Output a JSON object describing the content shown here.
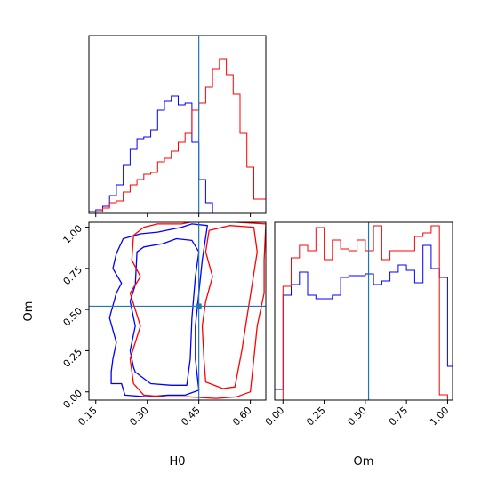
{
  "chart_data": {
    "type": "corner",
    "parameters": [
      "H0",
      "Om"
    ],
    "truth": {
      "H0": 0.45,
      "Om": 0.52
    },
    "truth_color": "#1f77b4",
    "series": [
      {
        "color": "#0000ff"
      },
      {
        "color": "#ff0000"
      }
    ],
    "axes": {
      "H0": {
        "xlabel": "H0",
        "lim": [
          0.13,
          0.645
        ],
        "ticks": [
          0.15,
          0.3,
          0.45,
          0.6
        ],
        "tick_labels": [
          "0.15",
          "0.30",
          "0.45",
          "0.60"
        ]
      },
      "Om": {
        "xlabel": "Om",
        "ylabel": "Om",
        "lim": [
          -0.05,
          1.03
        ],
        "ticks": [
          0.0,
          0.25,
          0.5,
          0.75,
          1.0
        ],
        "tick_labels": [
          "0.00",
          "0.25",
          "0.50",
          "0.75",
          "1.00"
        ]
      }
    },
    "H0_hist": {
      "ylim": [
        0,
        1.0
      ],
      "bin_edges": [
        0.13,
        0.15,
        0.17,
        0.19,
        0.21,
        0.23,
        0.25,
        0.27,
        0.29,
        0.31,
        0.33,
        0.35,
        0.37,
        0.39,
        0.41,
        0.43,
        0.45,
        0.47,
        0.49,
        0.51,
        0.53,
        0.55,
        0.57,
        0.59,
        0.61,
        0.63,
        0.645
      ],
      "blue": [
        0.01,
        0.02,
        0.04,
        0.1,
        0.16,
        0.27,
        0.36,
        0.42,
        0.43,
        0.47,
        0.58,
        0.63,
        0.66,
        0.61,
        0.62,
        0.4,
        0.19,
        0.06,
        0,
        0,
        0,
        0,
        0,
        0,
        0,
        0
      ],
      "red": [
        0,
        0.01,
        0.03,
        0.06,
        0.07,
        0.12,
        0.16,
        0.19,
        0.22,
        0.23,
        0.29,
        0.31,
        0.35,
        0.4,
        0.45,
        0.58,
        0.62,
        0.71,
        0.81,
        0.87,
        0.78,
        0.67,
        0.45,
        0.26,
        0.08,
        0.08
      ]
    },
    "Om_hist": {
      "ylim": [
        0,
        1.0
      ],
      "bin_edges": [
        -0.05,
        0.0,
        0.05,
        0.1,
        0.15,
        0.2,
        0.25,
        0.3,
        0.35,
        0.4,
        0.45,
        0.5,
        0.55,
        0.6,
        0.65,
        0.7,
        0.75,
        0.8,
        0.85,
        0.9,
        0.95,
        1.0,
        1.03
      ],
      "blue": [
        0.06,
        0.59,
        0.65,
        0.72,
        0.59,
        0.57,
        0.57,
        0.59,
        0.69,
        0.7,
        0.7,
        0.71,
        0.65,
        0.67,
        0.72,
        0.76,
        0.73,
        0.66,
        0.87,
        0.74,
        0.69,
        0.19
      ],
      "red": [
        0,
        0.64,
        0.8,
        0.87,
        0.84,
        0.97,
        0.79,
        0.9,
        0.85,
        0.84,
        0.9,
        0.84,
        0.98,
        0.79,
        0.84,
        0.84,
        0.84,
        0.92,
        0.94,
        0.98,
        0.03,
        0
      ]
    },
    "contours": [
      {
        "color": "#0000ff",
        "level": "outer",
        "points": [
          [
            0.195,
            0.05
          ],
          [
            0.225,
            0.05
          ],
          [
            0.235,
            -0.02
          ],
          [
            0.3,
            -0.03
          ],
          [
            0.36,
            -0.02
          ],
          [
            0.41,
            -0.02
          ],
          [
            0.45,
            0.01
          ],
          [
            0.44,
            0.2
          ],
          [
            0.44,
            0.4
          ],
          [
            0.45,
            0.6
          ],
          [
            0.46,
            0.8
          ],
          [
            0.475,
            1.01
          ],
          [
            0.43,
            1.02
          ],
          [
            0.4,
            1.0
          ],
          [
            0.33,
            0.97
          ],
          [
            0.28,
            0.96
          ],
          [
            0.23,
            0.93
          ],
          [
            0.21,
            0.84
          ],
          [
            0.2,
            0.75
          ],
          [
            0.225,
            0.66
          ],
          [
            0.21,
            0.6
          ],
          [
            0.19,
            0.45
          ],
          [
            0.21,
            0.3
          ],
          [
            0.2,
            0.2
          ],
          [
            0.195,
            0.12
          ]
        ]
      },
      {
        "color": "#0000ff",
        "level": "inner",
        "points": [
          [
            0.265,
            0.12
          ],
          [
            0.31,
            0.05
          ],
          [
            0.37,
            0.04
          ],
          [
            0.415,
            0.04
          ],
          [
            0.425,
            0.2
          ],
          [
            0.43,
            0.45
          ],
          [
            0.44,
            0.7
          ],
          [
            0.45,
            0.85
          ],
          [
            0.43,
            0.92
          ],
          [
            0.385,
            0.93
          ],
          [
            0.345,
            0.9
          ],
          [
            0.29,
            0.88
          ],
          [
            0.27,
            0.85
          ],
          [
            0.265,
            0.65
          ],
          [
            0.25,
            0.55
          ],
          [
            0.265,
            0.4
          ],
          [
            0.25,
            0.25
          ],
          [
            0.26,
            0.15
          ]
        ]
      },
      {
        "color": "#ff0000",
        "level": "outer",
        "points": [
          [
            0.29,
            -0.02
          ],
          [
            0.35,
            -0.03
          ],
          [
            0.42,
            -0.03
          ],
          [
            0.5,
            -0.04
          ],
          [
            0.56,
            -0.03
          ],
          [
            0.6,
            0.0
          ],
          [
            0.61,
            0.2
          ],
          [
            0.62,
            0.4
          ],
          [
            0.64,
            0.6
          ],
          [
            0.64,
            0.8
          ],
          [
            0.645,
            1.02
          ],
          [
            0.56,
            1.03
          ],
          [
            0.45,
            1.04
          ],
          [
            0.4,
            1.02
          ],
          [
            0.33,
            1.02
          ],
          [
            0.29,
            1.0
          ],
          [
            0.26,
            0.95
          ],
          [
            0.255,
            0.8
          ],
          [
            0.28,
            0.7
          ],
          [
            0.25,
            0.6
          ],
          [
            0.28,
            0.4
          ],
          [
            0.25,
            0.2
          ],
          [
            0.26,
            0.05
          ]
        ]
      },
      {
        "color": "#ff0000",
        "level": "inner",
        "points": [
          [
            0.47,
            0.06
          ],
          [
            0.52,
            0.02
          ],
          [
            0.555,
            0.03
          ],
          [
            0.575,
            0.25
          ],
          [
            0.59,
            0.45
          ],
          [
            0.605,
            0.65
          ],
          [
            0.62,
            0.85
          ],
          [
            0.61,
            1.0
          ],
          [
            0.54,
            1.01
          ],
          [
            0.48,
            0.98
          ],
          [
            0.47,
            0.85
          ],
          [
            0.49,
            0.7
          ],
          [
            0.47,
            0.55
          ],
          [
            0.46,
            0.4
          ],
          [
            0.465,
            0.2
          ]
        ]
      }
    ]
  }
}
